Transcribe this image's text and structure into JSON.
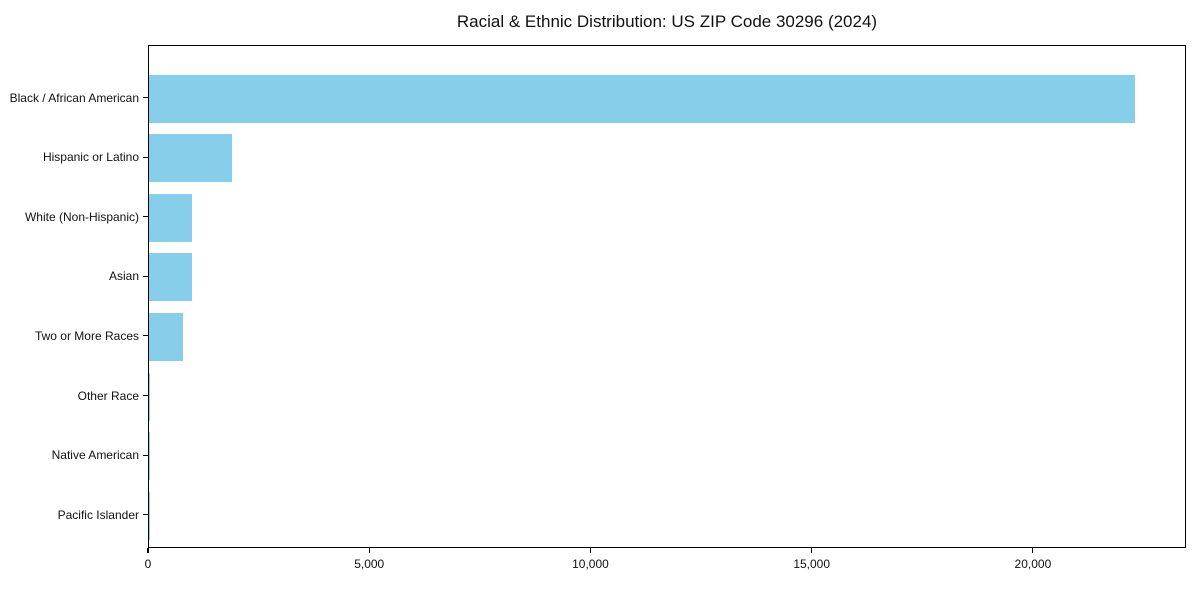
{
  "chart_data": {
    "type": "bar",
    "orientation": "horizontal",
    "title": "Racial & Ethnic Distribution: US ZIP Code 30296 (2024)",
    "categories": [
      "Black / African American",
      "Hispanic or Latino",
      "White (Non-Hispanic)",
      "Asian",
      "Two or More Races",
      "Other Race",
      "Native American",
      "Pacific Islander"
    ],
    "values": [
      22330,
      1870,
      980,
      965,
      760,
      25,
      10,
      5
    ],
    "xlabel": "",
    "ylabel": "",
    "xlim": [
      0,
      23460
    ],
    "xticks": {
      "values": [
        0,
        5000,
        10000,
        15000,
        20000
      ],
      "labels": [
        "0",
        "5,000",
        "10,000",
        "15,000",
        "20,000"
      ]
    },
    "bar_color": "#87CEEB",
    "frame_color": "#000000",
    "grid": false,
    "legend": null
  }
}
